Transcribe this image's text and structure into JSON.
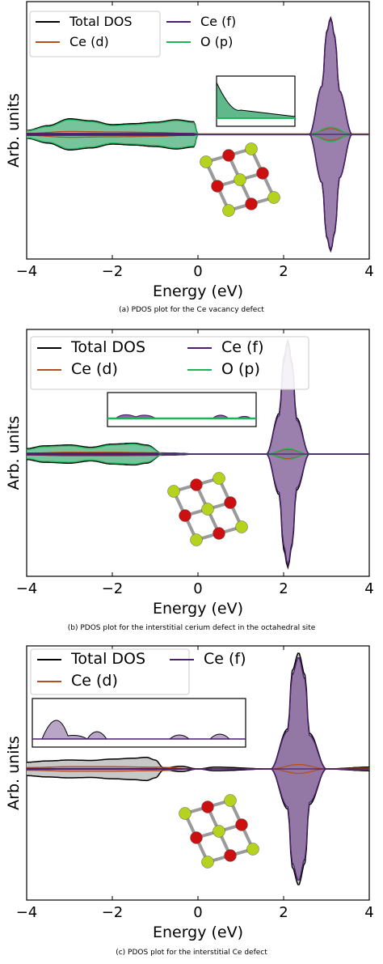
{
  "colors": {
    "total": "#000000",
    "ce_d": "#b4501e",
    "ce_f": "#4b1e6e",
    "o_p": "#1eb45a",
    "fill_green": "#5fb98a",
    "fill_purple": "#8a6aa0",
    "fill_grey": "#c8c8c8",
    "atom_o": "#cc1010",
    "atom_ce": "#b5d21e"
  },
  "chart_data": [
    {
      "type": "area",
      "xlabel": "Energy (eV)",
      "ylabel": "Arb. units",
      "xlim": [
        -4,
        4
      ],
      "x_ticks": [
        "−4",
        "−2",
        "0",
        "2",
        "4"
      ],
      "legend": {
        "placement": "top-left",
        "entries": [
          "Total DOS",
          "Ce (d)",
          "Ce (f)",
          "O (p)"
        ]
      },
      "caption": "(a) PDOS plot for the Ce vacancy defect",
      "series": [
        {
          "name": "Total DOS",
          "x": [
            -4.0,
            -3.5,
            -3.0,
            -2.5,
            -2.0,
            -1.5,
            -1.0,
            -0.5,
            -0.1,
            0.0,
            2.6,
            2.9,
            3.0,
            3.1,
            3.2,
            3.3,
            3.6
          ],
          "y": [
            0.08,
            0.18,
            0.32,
            0.28,
            0.2,
            0.22,
            0.25,
            0.3,
            0.26,
            0.0,
            0.0,
            1.0,
            2.1,
            2.4,
            2.0,
            0.9,
            0.0
          ]
        },
        {
          "name": "Ce (d)",
          "x": [
            -4.0,
            -3.0,
            -2.0,
            -1.0,
            0.0,
            2.6,
            3.1,
            3.6
          ],
          "y": [
            0.02,
            0.06,
            0.05,
            0.04,
            0.01,
            0.01,
            0.12,
            0.01
          ]
        },
        {
          "name": "Ce (f)",
          "x": [
            -4.0,
            -0.1,
            0.0,
            2.6,
            2.9,
            3.0,
            3.1,
            3.2,
            3.3,
            3.6
          ],
          "y": [
            0.02,
            0.02,
            0.0,
            0.0,
            1.0,
            2.08,
            2.38,
            1.98,
            0.9,
            0.0
          ]
        },
        {
          "name": "O (p)",
          "x": [
            -4.0,
            -3.5,
            -3.0,
            -2.5,
            -2.0,
            -1.5,
            -1.0,
            -0.5,
            -0.1,
            0.0,
            2.6,
            3.1,
            3.6
          ],
          "y": [
            0.07,
            0.16,
            0.3,
            0.26,
            0.18,
            0.2,
            0.23,
            0.28,
            0.24,
            0.0,
            0.0,
            0.15,
            0.0
          ]
        }
      ]
    },
    {
      "type": "area",
      "xlabel": "Energy (eV)",
      "ylabel": "Arb. units",
      "xlim": [
        -4,
        4
      ],
      "x_ticks": [
        "−4",
        "−2",
        "0",
        "2",
        "4"
      ],
      "legend": {
        "placement": "top",
        "entries": [
          "Total DOS",
          "Ce (d)",
          "Ce (f)",
          "O (p)"
        ]
      },
      "caption": "(b) PDOS plot for the interstitial cerium defect in the octahedral site",
      "series": [
        {
          "name": "Total DOS",
          "x": [
            -4.0,
            -3.6,
            -3.0,
            -2.5,
            -2.0,
            -1.5,
            -1.2,
            -0.8,
            -0.6,
            0.0,
            1.6,
            1.9,
            2.0,
            2.1,
            2.2,
            2.3,
            2.6,
            4.0
          ],
          "y": [
            0.12,
            0.18,
            0.2,
            0.15,
            0.22,
            0.24,
            0.2,
            0.0,
            0.02,
            0.0,
            0.0,
            0.9,
            2.1,
            2.5,
            2.0,
            0.8,
            0.0,
            0.0
          ]
        },
        {
          "name": "Ce (d)",
          "x": [
            -4.0,
            -3.0,
            -2.0,
            -1.0,
            0.0,
            1.6,
            2.1,
            2.6,
            4.0
          ],
          "y": [
            0.02,
            0.04,
            0.04,
            0.03,
            0.0,
            0.0,
            0.1,
            0.0,
            0.0
          ]
        },
        {
          "name": "Ce (f)",
          "x": [
            -4.0,
            -0.8,
            0.0,
            1.6,
            1.9,
            2.0,
            2.1,
            2.2,
            2.3,
            2.6,
            4.0
          ],
          "y": [
            0.02,
            0.02,
            0.0,
            0.0,
            0.85,
            2.0,
            2.45,
            1.95,
            0.75,
            0.0,
            0.0
          ]
        },
        {
          "name": "O (p)",
          "x": [
            -4.0,
            -3.6,
            -3.0,
            -2.5,
            -2.0,
            -1.5,
            -1.2,
            -0.8,
            0.0,
            1.6,
            2.1,
            2.6,
            4.0
          ],
          "y": [
            0.1,
            0.16,
            0.18,
            0.13,
            0.2,
            0.22,
            0.18,
            0.0,
            0.0,
            0.0,
            0.12,
            0.0,
            0.0
          ]
        }
      ]
    },
    {
      "type": "area",
      "xlabel": "Energy (eV)",
      "ylabel": "Arb. units",
      "xlim": [
        -4,
        4
      ],
      "x_ticks": [
        "−4",
        "−2",
        "0",
        "2",
        "4"
      ],
      "legend": {
        "placement": "top",
        "entries": [
          "Total DOS",
          "Ce (d)",
          "Ce (f)"
        ]
      },
      "caption": "(c) PDOS plot for the interstitial Ce defect",
      "series": [
        {
          "name": "Total DOS",
          "x": [
            -4.0,
            -3.5,
            -3.0,
            -2.5,
            -2.0,
            -1.5,
            -1.2,
            -1.0,
            -0.8,
            -0.4,
            0.0,
            0.4,
            1.7,
            2.1,
            2.2,
            2.35,
            2.5,
            2.6,
            3.0,
            4.0
          ],
          "y": [
            0.15,
            0.18,
            0.2,
            0.19,
            0.22,
            0.24,
            0.26,
            0.2,
            0.02,
            0.06,
            0.0,
            0.04,
            0.0,
            0.9,
            2.2,
            2.6,
            2.1,
            0.8,
            0.0,
            0.04
          ]
        },
        {
          "name": "Ce (d)",
          "x": [
            -4.0,
            -3.0,
            -2.0,
            -1.0,
            0.0,
            1.7,
            2.35,
            3.0,
            4.0
          ],
          "y": [
            0.03,
            0.05,
            0.05,
            0.04,
            0.0,
            0.0,
            0.1,
            0.0,
            0.02
          ]
        },
        {
          "name": "Ce (f)",
          "x": [
            -4.0,
            -1.0,
            0.0,
            1.7,
            2.1,
            2.2,
            2.35,
            2.5,
            2.6,
            3.0,
            4.0
          ],
          "y": [
            0.01,
            0.01,
            0.0,
            0.0,
            0.85,
            2.1,
            2.5,
            2.0,
            0.75,
            0.0,
            0.0
          ]
        }
      ]
    }
  ]
}
